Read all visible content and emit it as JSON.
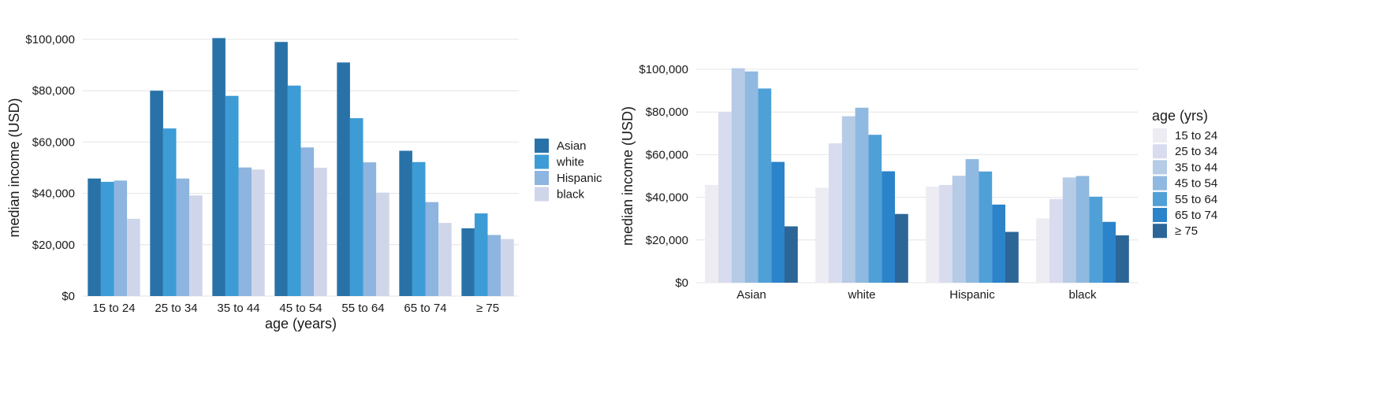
{
  "colors": {
    "blues": [
      "#2872a8",
      "#3d9cd6",
      "#8db5df",
      "#cfd6ea"
    ],
    "ages": [
      "#ececf2",
      "#d9dcee",
      "#b5cbe6",
      "#8fb9e0",
      "#4fa0d7",
      "#2b83c9",
      "#2c6697"
    ]
  },
  "chart_data": [
    {
      "type": "bar",
      "categories": [
        "15 to 24",
        "25 to 34",
        "35 to 44",
        "45 to 54",
        "55 to 64",
        "65 to 74",
        "≥ 75"
      ],
      "series": [
        {
          "name": "Asian",
          "values": [
            45800,
            80000,
            100500,
            99000,
            91000,
            56600,
            26400
          ]
        },
        {
          "name": "white",
          "values": [
            44500,
            65300,
            78000,
            82000,
            69300,
            52200,
            32200
          ]
        },
        {
          "name": "Hispanic",
          "values": [
            45000,
            45800,
            50100,
            57900,
            52100,
            36600,
            23800
          ]
        },
        {
          "name": "black",
          "values": [
            30100,
            39200,
            49300,
            50000,
            40300,
            28500,
            22200
          ]
        }
      ],
      "yticks": [
        {
          "value": 0,
          "label": "$0"
        },
        {
          "value": 20000,
          "label": "$20,000"
        },
        {
          "value": 40000,
          "label": "$40,000"
        },
        {
          "value": 60000,
          "label": "$60,000"
        },
        {
          "value": 80000,
          "label": "$80,000"
        },
        {
          "value": 100000,
          "label": "$100,000"
        }
      ],
      "ylim": [
        0,
        100000
      ],
      "xlabel": "age (years)",
      "ylabel": "median income (USD)",
      "legend_title": "",
      "legend": [
        "Asian",
        "white",
        "Hispanic",
        "black"
      ],
      "legend_position": "right",
      "grid": "horizontal"
    },
    {
      "type": "bar",
      "categories": [
        "Asian",
        "white",
        "Hispanic",
        "black"
      ],
      "series": [
        {
          "name": "15 to 24",
          "values": [
            45800,
            44500,
            45000,
            30100
          ]
        },
        {
          "name": "25 to 34",
          "values": [
            80000,
            65300,
            45800,
            39200
          ]
        },
        {
          "name": "35 to 44",
          "values": [
            100500,
            78000,
            50100,
            49300
          ]
        },
        {
          "name": "45 to 54",
          "values": [
            99000,
            82000,
            57900,
            50000
          ]
        },
        {
          "name": "55 to 64",
          "values": [
            91000,
            69300,
            52100,
            40300
          ]
        },
        {
          "name": "65 to 74",
          "values": [
            56600,
            52200,
            36600,
            28500
          ]
        },
        {
          "name": "≥ 75",
          "values": [
            26400,
            32200,
            23800,
            22200
          ]
        }
      ],
      "yticks": [
        {
          "value": 0,
          "label": "$0"
        },
        {
          "value": 20000,
          "label": "$20,000"
        },
        {
          "value": 40000,
          "label": "$40,000"
        },
        {
          "value": 60000,
          "label": "$60,000"
        },
        {
          "value": 80000,
          "label": "$80,000"
        },
        {
          "value": 100000,
          "label": "$100,000"
        }
      ],
      "ylim": [
        0,
        100000
      ],
      "xlabel": "",
      "ylabel": "median income (USD)",
      "legend_title": "age (yrs)",
      "legend": [
        "15 to 24",
        "25 to 34",
        "35 to 44",
        "45 to 54",
        "55 to 64",
        "65 to 74",
        "≥ 75"
      ],
      "legend_position": "right",
      "grid": "horizontal"
    }
  ]
}
